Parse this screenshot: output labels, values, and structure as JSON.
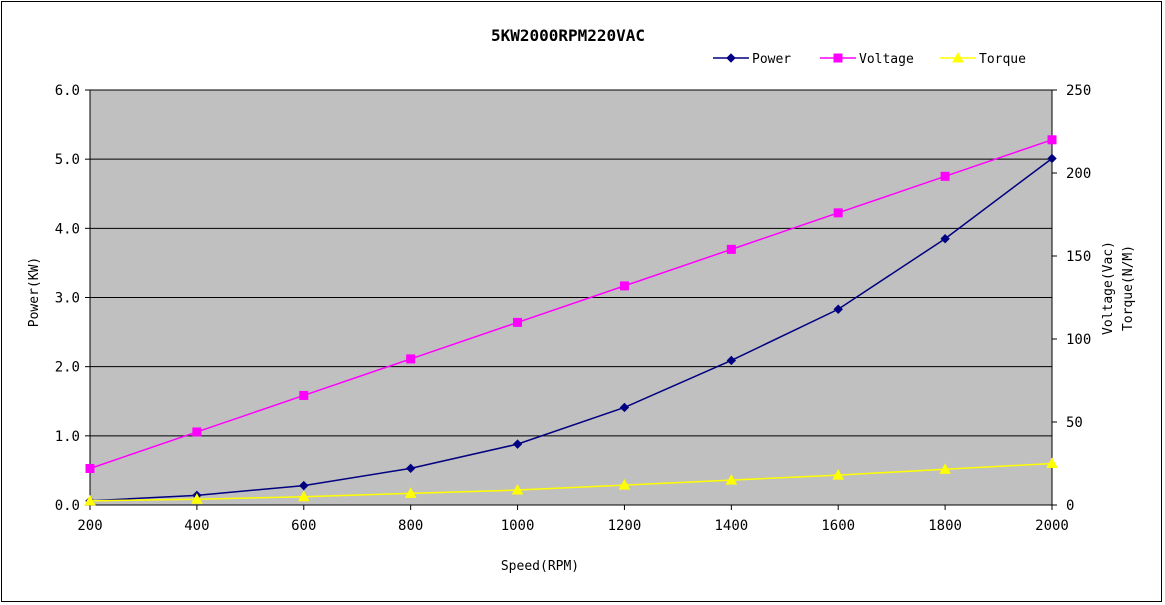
{
  "chart_data": {
    "type": "line",
    "title": "5KW2000RPM220VAC",
    "xlabel": "Speed(RPM)",
    "ylabel": "Power(KW)",
    "y2label": [
      "Voltage(Vac)",
      "Torque(N/M)"
    ],
    "x": [
      200,
      400,
      600,
      800,
      1000,
      1200,
      1400,
      1600,
      1800,
      2000
    ],
    "xlim": [
      200,
      2000
    ],
    "ylim": [
      0,
      6
    ],
    "y2lim": [
      0,
      250
    ],
    "x_ticks": [
      "200",
      "400",
      "600",
      "800",
      "1000",
      "1200",
      "1400",
      "1600",
      "1800",
      "2000"
    ],
    "y_ticks": [
      "0.0",
      "1.0",
      "2.0",
      "3.0",
      "4.0",
      "5.0",
      "6.0"
    ],
    "y2_ticks": [
      "0",
      "50",
      "100",
      "150",
      "200",
      "250"
    ],
    "grid": true,
    "legend_position": "top-right",
    "plot_background": "#c0c0c0",
    "series": [
      {
        "name": "Power",
        "axis": "left",
        "marker": "diamond",
        "color": "#000080",
        "values": [
          0.06,
          0.14,
          0.28,
          0.53,
          0.88,
          1.41,
          2.09,
          2.83,
          3.85,
          5.01
        ]
      },
      {
        "name": "Voltage",
        "axis": "right",
        "marker": "square",
        "color": "#ff00ff",
        "values": [
          22,
          44,
          66,
          88,
          110,
          132,
          154,
          176,
          198,
          220
        ]
      },
      {
        "name": "Torque",
        "axis": "right",
        "marker": "triangle",
        "color": "#ffff00",
        "values": [
          2.5,
          3.5,
          5,
          7,
          9,
          12,
          15,
          18,
          21.5,
          25
        ]
      }
    ]
  }
}
